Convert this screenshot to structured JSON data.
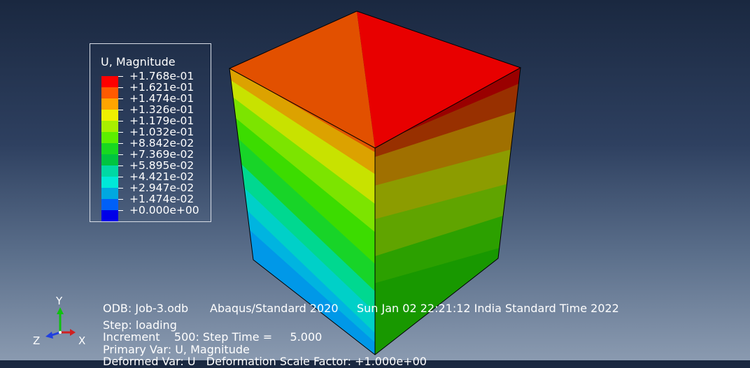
{
  "legend": {
    "title": "U, Magnitude",
    "values": [
      "+1.768e-01",
      "+1.621e-01",
      "+1.474e-01",
      "+1.326e-01",
      "+1.179e-01",
      "+1.032e-01",
      "+8.842e-02",
      "+7.369e-02",
      "+5.895e-02",
      "+4.421e-02",
      "+2.947e-02",
      "+1.474e-02",
      "+0.000e+00"
    ],
    "colors": [
      "#ff0000",
      "#ff5a00",
      "#ffa400",
      "#eef000",
      "#a8ef00",
      "#5cef00",
      "#18d820",
      "#00c440",
      "#00d8a4",
      "#00e8d8",
      "#00a8e0",
      "#0060f8",
      "#0000e8"
    ]
  },
  "info": {
    "odb": "ODB: Job-3.odb",
    "solver": "Abaqus/Standard 2020",
    "date": "Sun Jan 02 22:21:12 India Standard Time 2022",
    "step": "Step: loading",
    "increment": "Increment    500: Step Time =     5.000",
    "primary_var": "Primary Var: U, Magnitude",
    "deformed_var": "Deformed Var: U   Deformation Scale Factor: +1.000e+00"
  },
  "triad": {
    "x": "X",
    "y": "Y",
    "z": "Z"
  },
  "colors": {
    "top_face": "#e80000",
    "top_left_face": "#e25000",
    "edge": "#000000"
  }
}
